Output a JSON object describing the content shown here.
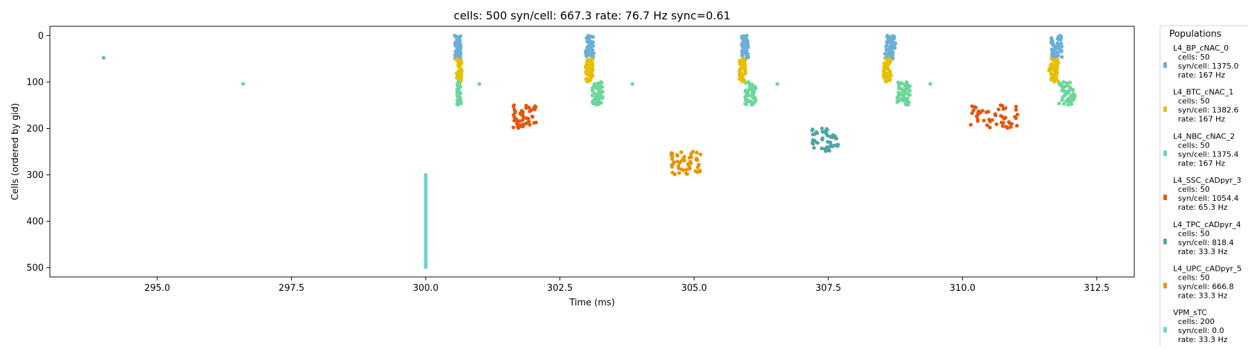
{
  "chart_data": {
    "type": "scatter",
    "title": "cells: 500   syn/cell: 667.3   rate: 76.7 Hz    sync=0.61",
    "xlabel": "Time (ms)",
    "ylabel": "Cells (ordered by gid)",
    "xlim": [
      293,
      313.2
    ],
    "ylim": [
      520,
      -20
    ],
    "x_ticks": [
      295.0,
      297.5,
      300.0,
      302.5,
      305.0,
      307.5,
      310.0,
      312.5
    ],
    "x_tick_labels": [
      "295.0",
      "297.5",
      "300.0",
      "302.5",
      "305.0",
      "307.5",
      "310.0",
      "312.5"
    ],
    "y_ticks": [
      0,
      100,
      200,
      300,
      400,
      500
    ],
    "y_tick_labels": [
      "0",
      "100",
      "200",
      "300",
      "400",
      "500"
    ],
    "grid": false,
    "legend": {
      "title": "Populations",
      "position": "outside-right"
    },
    "series": [
      {
        "name": "L4_BP_cNAC_0",
        "lines": [
          "L4_BP_cNAC_0",
          "  cells: 50",
          "  syn/cell: 1375.0",
          "  rate: 167 Hz"
        ],
        "color": "#6baed6",
        "gid_range": [
          0,
          50
        ],
        "bursts": [
          [
            300.6,
            0.06
          ],
          [
            303.05,
            0.08
          ],
          [
            305.95,
            0.06
          ],
          [
            308.65,
            0.1
          ],
          [
            311.75,
            0.1
          ]
        ],
        "extra_points": [
          [
            294.0,
            48
          ]
        ]
      },
      {
        "name": "L4_BTC_cNAC_1",
        "lines": [
          "L4_BTC_cNAC_1",
          "  cells: 50",
          "  syn/cell: 1382.6",
          "  rate: 167 Hz"
        ],
        "color": "#e6c000",
        "gid_range": [
          50,
          100
        ],
        "bursts": [
          [
            300.62,
            0.05
          ],
          [
            303.05,
            0.07
          ],
          [
            305.9,
            0.06
          ],
          [
            308.6,
            0.07
          ],
          [
            311.7,
            0.09
          ]
        ],
        "extra_points": []
      },
      {
        "name": "L4_NBC_cNAC_2",
        "lines": [
          "L4_NBC_cNAC_2",
          "  cells: 50",
          "  syn/cell: 1375.4",
          "  rate: 167 Hz"
        ],
        "color": "#6dd69b",
        "gid_range": [
          100,
          150
        ],
        "bursts": [
          [
            300.62,
            0.04
          ],
          [
            303.2,
            0.1
          ],
          [
            306.05,
            0.1
          ],
          [
            308.9,
            0.12
          ],
          [
            311.95,
            0.15
          ]
        ],
        "extra_points": [
          [
            296.6,
            104
          ],
          [
            301.0,
            104
          ],
          [
            303.85,
            104
          ],
          [
            306.55,
            104
          ],
          [
            309.4,
            104
          ]
        ]
      },
      {
        "name": "L4_SSC_cADpyr_3",
        "lines": [
          "L4_SSC_cADpyr_3",
          "  cells: 50",
          "  syn/cell: 1054.4",
          "  rate: 65.3 Hz"
        ],
        "color": "#e6550d",
        "gid_range": [
          150,
          200
        ],
        "bursts": [
          [
            301.85,
            0.22
          ],
          [
            310.6,
            0.45
          ]
        ],
        "extra_points": []
      },
      {
        "name": "L4_TPC_cADpyr_4",
        "lines": [
          "L4_TPC_cADpyr_4",
          "  cells: 50",
          "  syn/cell: 818.4",
          "  rate: 33.3 Hz"
        ],
        "color": "#4da6a3",
        "gid_range": [
          200,
          250
        ],
        "bursts": [
          [
            307.45,
            0.25
          ]
        ],
        "extra_points": []
      },
      {
        "name": "L4_UPC_cADpyr_5",
        "lines": [
          "L4_UPC_cADpyr_5",
          "  cells: 50",
          "  syn/cell: 666.8",
          "  rate: 33.3 Hz"
        ],
        "color": "#e69500",
        "gid_range": [
          250,
          300
        ],
        "bursts": [
          [
            304.85,
            0.28
          ]
        ],
        "extra_points": []
      },
      {
        "name": "VPM_sTC",
        "lines": [
          "VPM_sTC",
          "  cells: 200",
          "  syn/cell: 0.0",
          "  rate: 33.3 Hz"
        ],
        "color": "#6dd3d0",
        "gid_range": [
          300,
          500
        ],
        "bursts": [
          [
            300.0,
            0.0
          ]
        ],
        "extra_points": []
      }
    ]
  }
}
